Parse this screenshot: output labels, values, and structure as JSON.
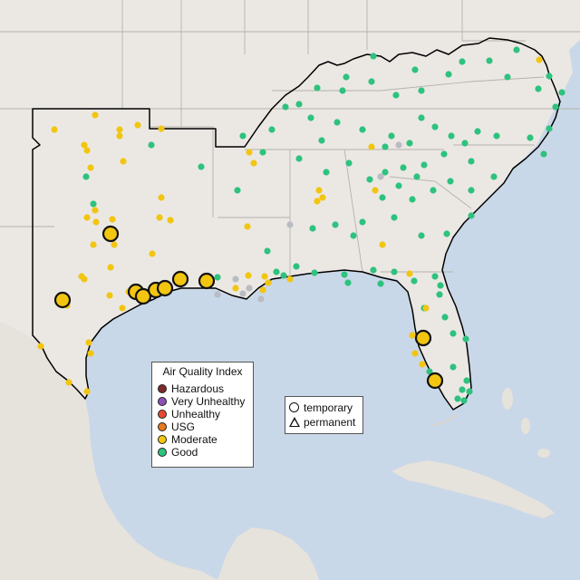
{
  "legend": {
    "title": "Air Quality Index",
    "categories": [
      {
        "label": "Hazardous",
        "color": "#7e2a2a"
      },
      {
        "label": "Very Unhealthy",
        "color": "#8f4fb3"
      },
      {
        "label": "Unhealthy",
        "color": "#e64a2e"
      },
      {
        "label": "USG",
        "color": "#e8791e"
      },
      {
        "label": "Moderate",
        "color": "#f2c511"
      },
      {
        "label": "Good",
        "color": "#2ec27e"
      }
    ],
    "no_data_color": "#b9bcc0"
  },
  "shape_legend": {
    "temporary": "temporary",
    "permanent": "permanent"
  },
  "map_colors": {
    "ocean": "#c9d8e8",
    "land": "#ebe8e4",
    "state_lines": "#b5b2ad",
    "region_outline": "#000000"
  }
}
